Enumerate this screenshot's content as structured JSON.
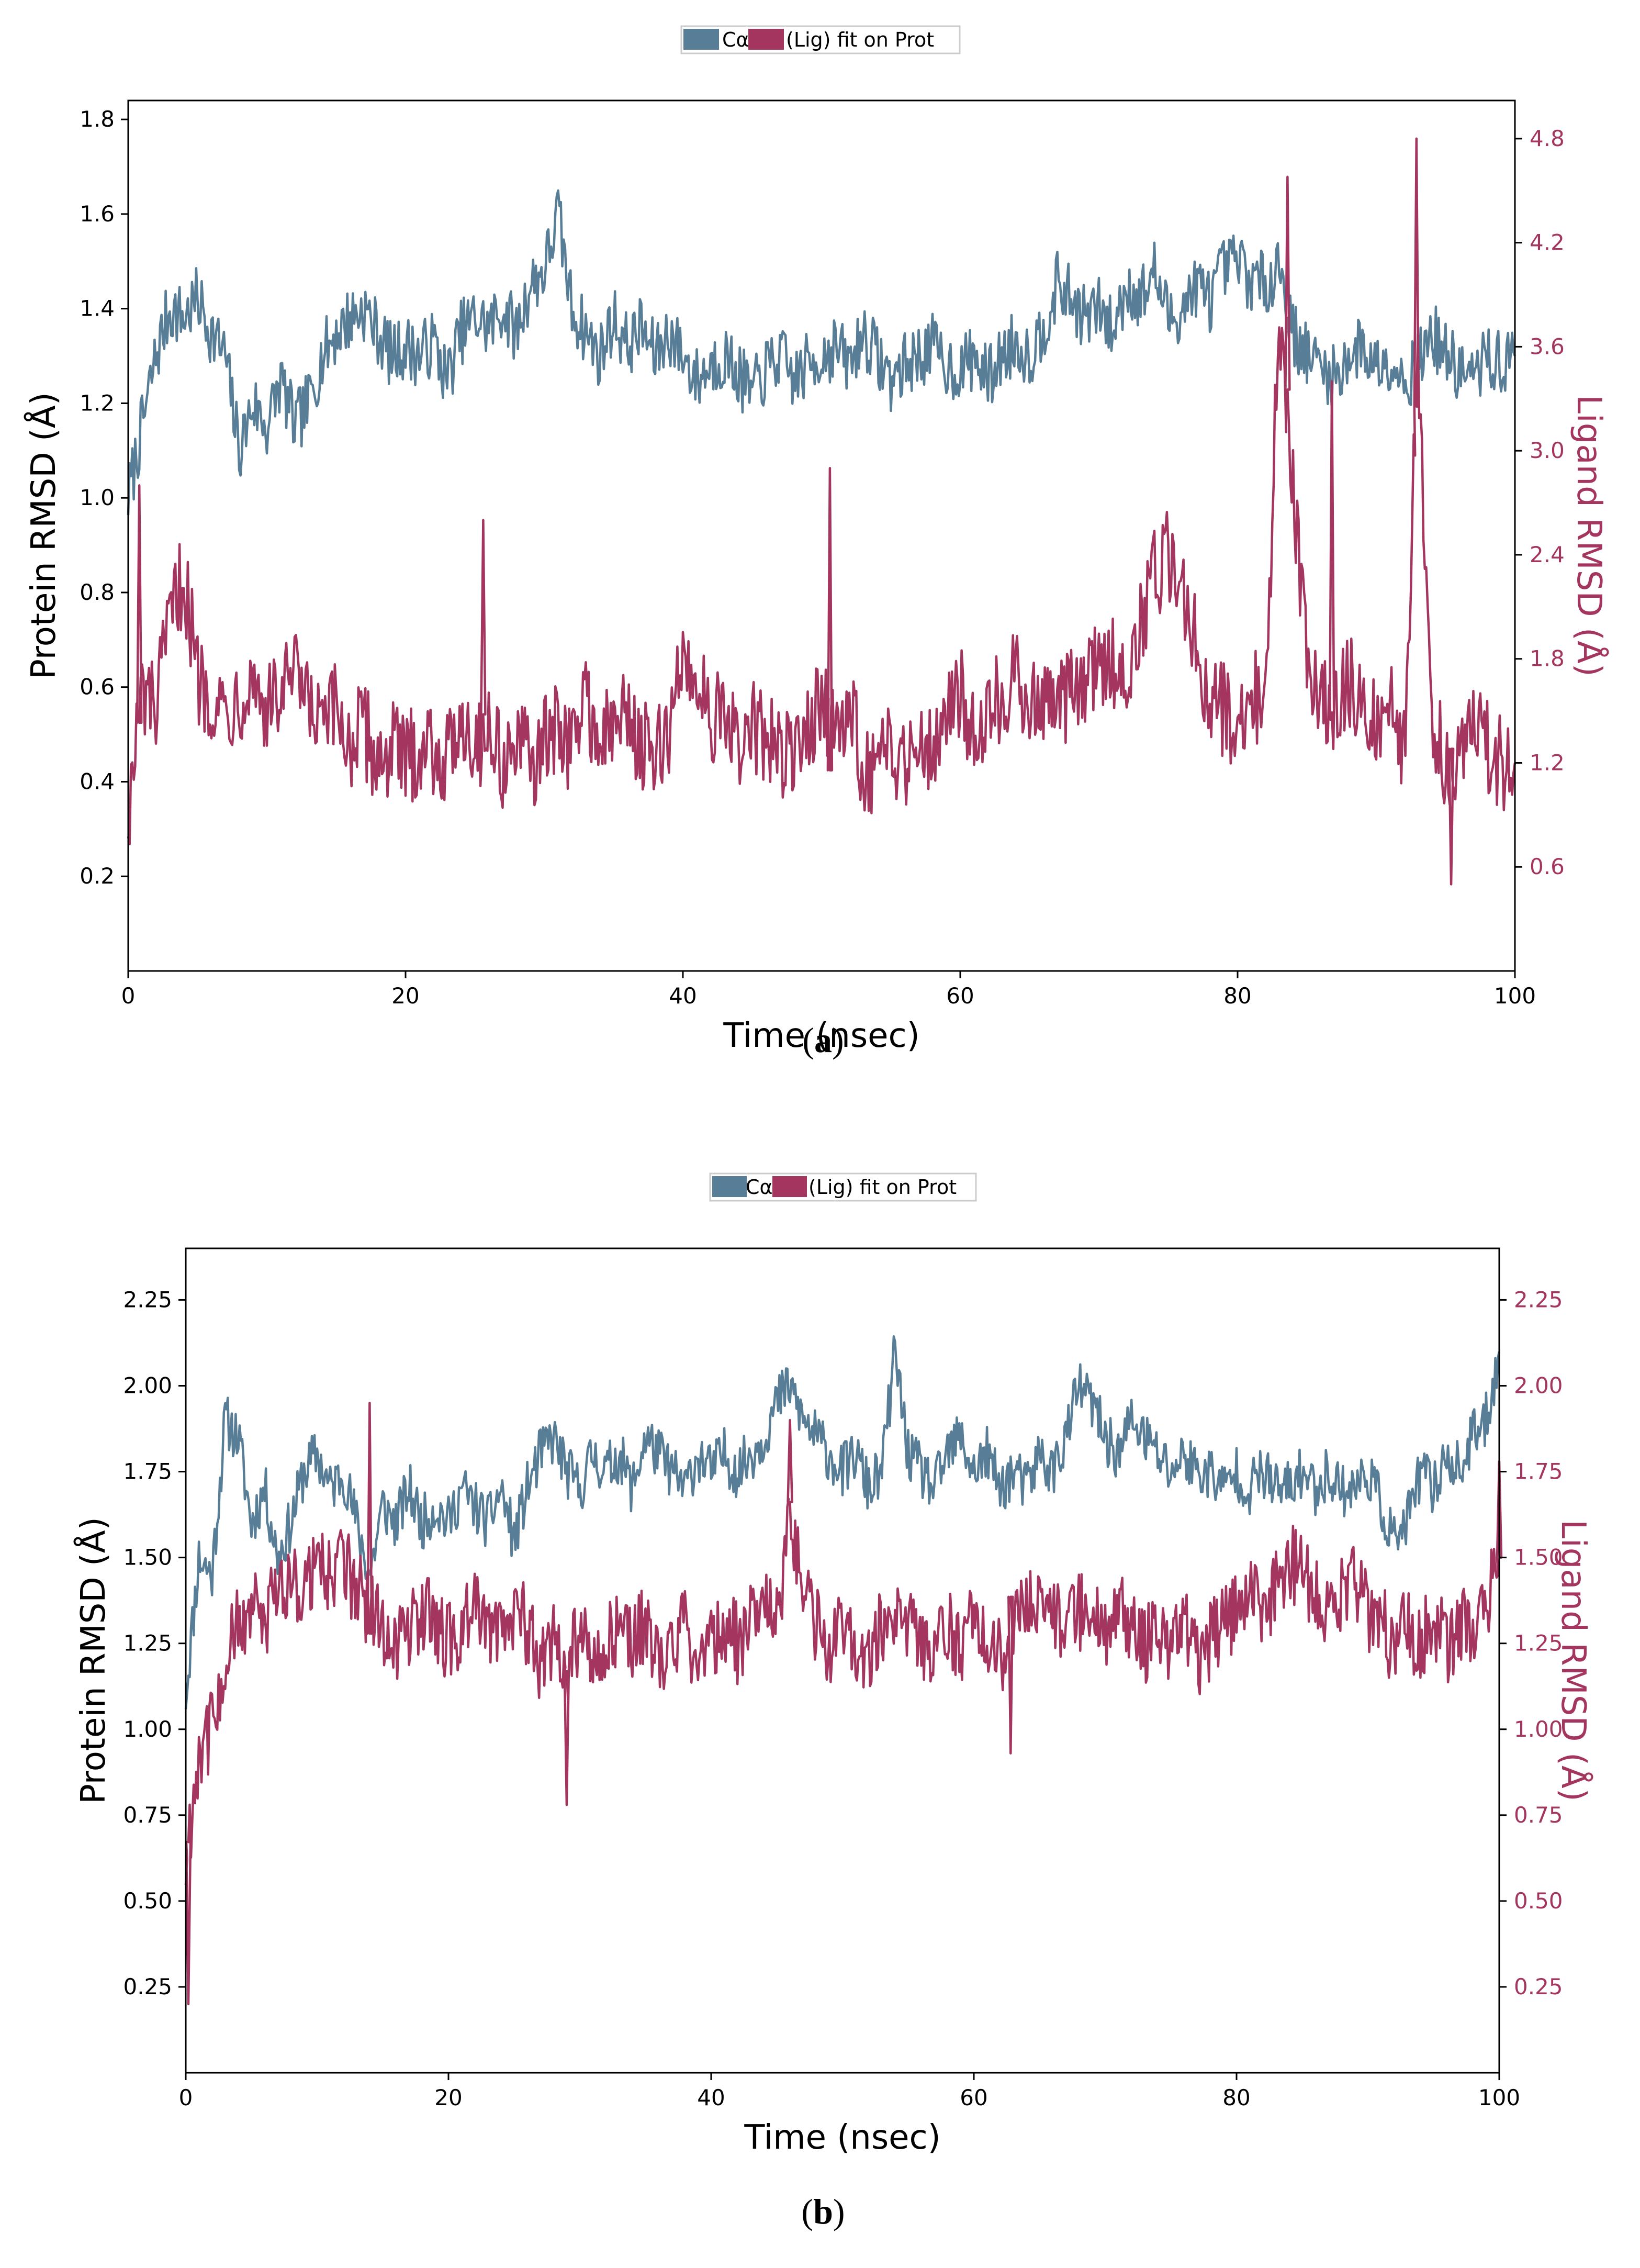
{
  "colors": {
    "protein": "#587d96",
    "ligand": "#a3355e",
    "axis": "#000000",
    "text": "#000000"
  },
  "legend": {
    "protein_label": "Cα",
    "ligand_label": "(Lig) fit on Prot"
  },
  "captions": {
    "a": "a",
    "b": "b"
  },
  "chart_data": [
    {
      "id": "a",
      "type": "line",
      "title": "",
      "xlabel": "Time (nsec)",
      "ylabel_left": "Protein RMSD (Å)",
      "ylabel_right": "Ligand RMSD (Å)",
      "xlim": [
        0,
        100
      ],
      "ylim_left": [
        0.0,
        1.84
      ],
      "ylim_right": [
        0.0,
        5.02
      ],
      "xticks": [
        0,
        20,
        40,
        60,
        80,
        100
      ],
      "yticks_left": [
        0.2,
        0.4,
        0.6,
        0.8,
        1.0,
        1.2,
        1.4,
        1.6,
        1.8
      ],
      "yticks_left_labels": [
        "0.2",
        "0.4",
        "0.6",
        "0.8",
        "1.0",
        "1.2",
        "1.4",
        "1.6",
        "1.8"
      ],
      "yticks_right": [
        0.6,
        1.2,
        1.8,
        2.4,
        3.0,
        3.6,
        4.2,
        4.8
      ],
      "yticks_right_labels": [
        "0.6",
        "1.2",
        "1.8",
        "2.4",
        "3.0",
        "3.6",
        "4.2",
        "4.8"
      ],
      "series": [
        {
          "name": "Cα",
          "axis": "left",
          "x": [
            0,
            1,
            2,
            3,
            4,
            5,
            6,
            7,
            8,
            9,
            10,
            11,
            12,
            13,
            14,
            15,
            16,
            17,
            18,
            19,
            20,
            21,
            22,
            23,
            24,
            25,
            26,
            27,
            28,
            29,
            30,
            31,
            32,
            33,
            34,
            35,
            36,
            37,
            38,
            39,
            40,
            41,
            42,
            43,
            44,
            45,
            46,
            47,
            48,
            49,
            50,
            51,
            52,
            53,
            54,
            55,
            56,
            57,
            58,
            59,
            60,
            61,
            62,
            63,
            64,
            65,
            66,
            67,
            68,
            69,
            70,
            71,
            72,
            73,
            74,
            75,
            76,
            77,
            78,
            79,
            80,
            81,
            82,
            83,
            84,
            85,
            86,
            87,
            88,
            89,
            90,
            91,
            92,
            93,
            94,
            95,
            96,
            97,
            98,
            99,
            100
          ],
          "values": [
            1.0,
            1.15,
            1.3,
            1.4,
            1.38,
            1.42,
            1.35,
            1.3,
            1.1,
            1.2,
            1.15,
            1.25,
            1.15,
            1.2,
            1.3,
            1.35,
            1.38,
            1.4,
            1.35,
            1.3,
            1.32,
            1.3,
            1.33,
            1.25,
            1.35,
            1.38,
            1.36,
            1.4,
            1.35,
            1.45,
            1.48,
            1.6,
            1.4,
            1.35,
            1.3,
            1.38,
            1.32,
            1.36,
            1.3,
            1.35,
            1.3,
            1.25,
            1.28,
            1.3,
            1.26,
            1.22,
            1.27,
            1.3,
            1.25,
            1.28,
            1.3,
            1.32,
            1.28,
            1.35,
            1.3,
            1.25,
            1.28,
            1.3,
            1.32,
            1.28,
            1.27,
            1.3,
            1.25,
            1.3,
            1.33,
            1.3,
            1.36,
            1.45,
            1.42,
            1.38,
            1.4,
            1.35,
            1.45,
            1.42,
            1.48,
            1.38,
            1.4,
            1.45,
            1.42,
            1.48,
            1.5,
            1.46,
            1.45,
            1.5,
            1.35,
            1.3,
            1.28,
            1.25,
            1.3,
            1.32,
            1.28,
            1.3,
            1.25,
            1.28,
            1.35,
            1.3,
            1.27,
            1.25,
            1.3,
            1.28,
            1.3
          ]
        },
        {
          "name": "(Lig) fit on Prot",
          "axis": "right",
          "x": [
            0,
            1,
            2,
            3,
            4,
            5,
            6,
            7,
            8,
            9,
            10,
            11,
            12,
            13,
            14,
            15,
            16,
            17,
            18,
            19,
            20,
            21,
            22,
            23,
            24,
            25,
            26,
            27,
            28,
            29,
            30,
            31,
            32,
            33,
            34,
            35,
            36,
            37,
            38,
            39,
            40,
            41,
            42,
            43,
            44,
            45,
            46,
            47,
            48,
            49,
            50,
            51,
            52,
            53,
            54,
            55,
            56,
            57,
            58,
            59,
            60,
            61,
            62,
            63,
            64,
            65,
            66,
            67,
            68,
            69,
            70,
            71,
            72,
            73,
            74,
            75,
            76,
            77,
            78,
            79,
            80,
            81,
            82,
            83,
            84,
            85,
            86,
            87,
            88,
            89,
            90,
            91,
            92,
            93,
            94,
            95,
            96,
            97,
            98,
            99,
            100
          ],
          "values": [
            0.9,
            1.6,
            1.5,
            2.0,
            2.3,
            1.7,
            1.6,
            1.5,
            1.6,
            1.7,
            1.5,
            1.6,
            1.7,
            1.5,
            1.4,
            1.5,
            1.3,
            1.4,
            1.2,
            1.3,
            1.2,
            1.3,
            1.3,
            1.2,
            1.5,
            1.3,
            1.4,
            1.2,
            1.3,
            1.2,
            1.3,
            1.4,
            1.3,
            1.6,
            1.3,
            1.4,
            1.5,
            1.3,
            1.2,
            1.4,
            1.8,
            1.7,
            1.5,
            1.4,
            1.3,
            1.4,
            1.3,
            1.3,
            1.2,
            1.4,
            1.6,
            1.3,
            1.5,
            1.2,
            1.1,
            1.3,
            1.2,
            1.4,
            1.3,
            1.5,
            1.6,
            1.4,
            1.5,
            1.6,
            1.7,
            1.5,
            1.6,
            1.5,
            1.6,
            1.7,
            1.7,
            1.8,
            1.7,
            2.0,
            2.3,
            2.4,
            2.2,
            1.9,
            1.6,
            1.5,
            1.4,
            1.6,
            1.5,
            3.8,
            2.8,
            1.8,
            1.6,
            1.5,
            1.7,
            1.5,
            1.4,
            1.6,
            1.3,
            3.5,
            1.4,
            1.2,
            1.3,
            1.4,
            1.3,
            1.2,
            1.2
          ],
          "spikes": [
            {
              "x": 0.8,
              "value": 2.8
            },
            {
              "x": 25.6,
              "value": 2.6
            },
            {
              "x": 50.6,
              "value": 2.9
            },
            {
              "x": 83.6,
              "value": 4.58
            },
            {
              "x": 86.8,
              "value": 3.4
            },
            {
              "x": 92.9,
              "value": 4.8
            },
            {
              "x": 95.4,
              "value": 0.5
            }
          ]
        }
      ]
    },
    {
      "id": "b",
      "type": "line",
      "title": "",
      "xlabel": "Time (nsec)",
      "ylabel_left": "Protein RMSD (Å)",
      "ylabel_right": "Ligand RMSD (Å)",
      "xlim": [
        0,
        100
      ],
      "ylim_left": [
        0.0,
        2.4
      ],
      "ylim_right": [
        0.0,
        2.4
      ],
      "xticks": [
        0,
        20,
        40,
        60,
        80,
        100
      ],
      "yticks_left": [
        0.25,
        0.5,
        0.75,
        1.0,
        1.25,
        1.5,
        1.75,
        2.0,
        2.25
      ],
      "yticks_left_labels": [
        "0.25",
        "0.50",
        "0.75",
        "1.00",
        "1.25",
        "1.50",
        "1.75",
        "2.00",
        "2.25"
      ],
      "yticks_right": [
        0.25,
        0.5,
        0.75,
        1.0,
        1.25,
        1.5,
        1.75,
        2.0,
        2.25
      ],
      "yticks_right_labels": [
        "0.25",
        "0.50",
        "0.75",
        "1.00",
        "1.25",
        "1.50",
        "1.75",
        "2.00",
        "2.25"
      ],
      "series": [
        {
          "name": "Cα",
          "axis": "left",
          "x": [
            0,
            1,
            2,
            3,
            4,
            5,
            6,
            7,
            8,
            9,
            10,
            11,
            12,
            13,
            14,
            15,
            16,
            17,
            18,
            19,
            20,
            21,
            22,
            23,
            24,
            25,
            26,
            27,
            28,
            29,
            30,
            31,
            32,
            33,
            34,
            35,
            36,
            37,
            38,
            39,
            40,
            41,
            42,
            43,
            44,
            45,
            46,
            47,
            48,
            49,
            50,
            51,
            52,
            53,
            54,
            55,
            56,
            57,
            58,
            59,
            60,
            61,
            62,
            63,
            64,
            65,
            66,
            67,
            68,
            69,
            70,
            71,
            72,
            73,
            74,
            75,
            76,
            77,
            78,
            79,
            80,
            81,
            82,
            83,
            84,
            85,
            86,
            87,
            88,
            89,
            90,
            91,
            92,
            93,
            94,
            95,
            96,
            97,
            98,
            99,
            100
          ],
          "values": [
            1.1,
            1.5,
            1.45,
            1.9,
            1.85,
            1.6,
            1.7,
            1.5,
            1.6,
            1.75,
            1.8,
            1.7,
            1.75,
            1.6,
            1.45,
            1.65,
            1.6,
            1.7,
            1.6,
            1.65,
            1.6,
            1.7,
            1.65,
            1.6,
            1.7,
            1.55,
            1.7,
            1.8,
            1.85,
            1.75,
            1.7,
            1.8,
            1.75,
            1.8,
            1.7,
            1.85,
            1.8,
            1.75,
            1.7,
            1.8,
            1.75,
            1.8,
            1.75,
            1.8,
            1.85,
            1.95,
            2.0,
            1.9,
            1.85,
            1.8,
            1.75,
            1.8,
            1.7,
            1.75,
            2.1,
            1.8,
            1.75,
            1.7,
            1.8,
            1.85,
            1.75,
            1.8,
            1.7,
            1.75,
            1.7,
            1.8,
            1.75,
            1.85,
            2.0,
            1.95,
            1.85,
            1.8,
            1.9,
            1.85,
            1.8,
            1.75,
            1.8,
            1.75,
            1.75,
            1.7,
            1.75,
            1.7,
            1.75,
            1.7,
            1.7,
            1.75,
            1.7,
            1.75,
            1.7,
            1.7,
            1.75,
            1.65,
            1.55,
            1.6,
            1.75,
            1.7,
            1.8,
            1.75,
            1.85,
            1.9,
            2.1
          ]
        },
        {
          "name": "(Lig) fit on Prot",
          "axis": "right",
          "x": [
            0,
            1,
            2,
            3,
            4,
            5,
            6,
            7,
            8,
            9,
            10,
            11,
            12,
            13,
            14,
            15,
            16,
            17,
            18,
            19,
            20,
            21,
            22,
            23,
            24,
            25,
            26,
            27,
            28,
            29,
            30,
            31,
            32,
            33,
            34,
            35,
            36,
            37,
            38,
            39,
            40,
            41,
            42,
            43,
            44,
            45,
            46,
            47,
            48,
            49,
            50,
            51,
            52,
            53,
            54,
            55,
            56,
            57,
            58,
            59,
            60,
            61,
            62,
            63,
            64,
            65,
            66,
            67,
            68,
            69,
            70,
            71,
            72,
            73,
            74,
            75,
            76,
            77,
            78,
            79,
            80,
            81,
            82,
            83,
            84,
            85,
            86,
            87,
            88,
            89,
            90,
            91,
            92,
            93,
            94,
            95,
            96,
            97,
            98,
            99,
            100
          ],
          "values": [
            0.6,
            0.95,
            1.0,
            1.2,
            1.3,
            1.35,
            1.3,
            1.4,
            1.45,
            1.4,
            1.5,
            1.45,
            1.5,
            1.4,
            1.35,
            1.3,
            1.25,
            1.3,
            1.35,
            1.3,
            1.25,
            1.3,
            1.35,
            1.3,
            1.3,
            1.35,
            1.3,
            1.2,
            1.25,
            1.15,
            1.3,
            1.2,
            1.25,
            1.3,
            1.25,
            1.3,
            1.2,
            1.25,
            1.3,
            1.2,
            1.25,
            1.3,
            1.25,
            1.3,
            1.35,
            1.3,
            1.6,
            1.4,
            1.3,
            1.25,
            1.3,
            1.25,
            1.2,
            1.3,
            1.35,
            1.3,
            1.25,
            1.2,
            1.3,
            1.25,
            1.3,
            1.25,
            1.2,
            1.3,
            1.35,
            1.4,
            1.35,
            1.3,
            1.35,
            1.3,
            1.3,
            1.35,
            1.3,
            1.25,
            1.3,
            1.25,
            1.3,
            1.2,
            1.25,
            1.3,
            1.35,
            1.4,
            1.35,
            1.4,
            1.5,
            1.45,
            1.4,
            1.35,
            1.4,
            1.45,
            1.35,
            1.3,
            1.25,
            1.3,
            1.25,
            1.3,
            1.25,
            1.3,
            1.3,
            1.35,
            1.5
          ],
          "spikes": [
            {
              "x": 0.2,
              "value": 0.2
            },
            {
              "x": 14.0,
              "value": 1.95
            },
            {
              "x": 29.0,
              "value": 0.78
            },
            {
              "x": 46.0,
              "value": 1.9
            },
            {
              "x": 62.8,
              "value": 0.93
            },
            {
              "x": 100.0,
              "value": 1.78
            }
          ]
        }
      ]
    }
  ]
}
